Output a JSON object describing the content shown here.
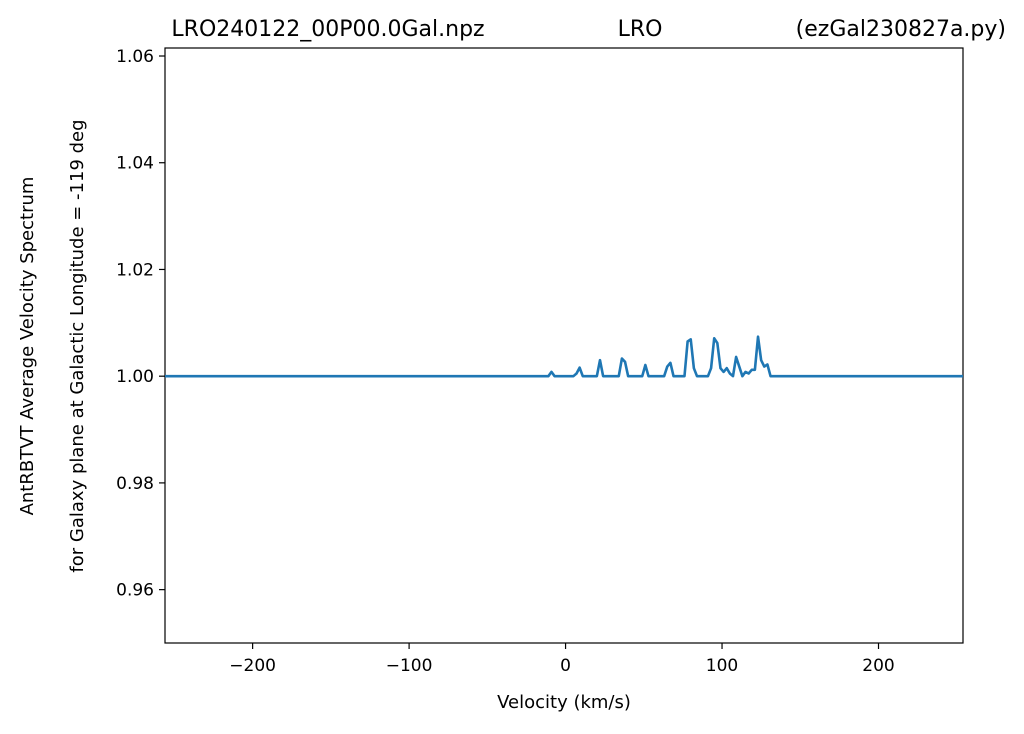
{
  "header": {
    "filename": "LRO240122_00P00.0Gal.npz",
    "station": "LRO",
    "script": "(ezGal230827a.py)"
  },
  "chart_data": {
    "type": "line",
    "title": "LRO240122_00P00.0Gal.npz LRO (ezGal230827a.py)",
    "xlabel": "Velocity (km/s)",
    "ylabel_lines": [
      "AntRBTVT Average Velocity Spectrum",
      "for Galaxy plane at Galactic Longitude = -119 deg"
    ],
    "xlim": [
      -256,
      254
    ],
    "ylim": [
      0.95,
      1.0615
    ],
    "x_ticks": [
      -200,
      -100,
      0,
      100,
      200
    ],
    "x_tick_labels": [
      "−200",
      "−100",
      "0",
      "100",
      "200"
    ],
    "y_ticks": [
      0.96,
      0.98,
      1.0,
      1.02,
      1.04,
      1.06
    ],
    "y_tick_labels": [
      "0.96",
      "0.98",
      "1.00",
      "1.02",
      "1.04",
      "1.06"
    ],
    "grid": false,
    "series": [
      {
        "color": "#1f77b4",
        "x": [
          -256,
          -11,
          -9,
          -7,
          5,
          7,
          9,
          11,
          20,
          22,
          24,
          34,
          36,
          38,
          40,
          49,
          51,
          53,
          63,
          65,
          67,
          69,
          76,
          78,
          80,
          82,
          84,
          91,
          93,
          95,
          97,
          99,
          101,
          103,
          105,
          107,
          109,
          111,
          113,
          115,
          117,
          119,
          121,
          123,
          125,
          127,
          129,
          131,
          254
        ],
        "y": [
          1.0,
          1.0,
          1.0008,
          1.0,
          1.0,
          1.0005,
          1.0016,
          1.0,
          1.0,
          1.003,
          1.0,
          1.0,
          1.0033,
          1.0027,
          1.0,
          1.0,
          1.0021,
          1.0,
          1.0,
          1.0018,
          1.0025,
          1.0,
          1.0,
          1.0065,
          1.0069,
          1.0015,
          1.0,
          1.0,
          1.0015,
          1.0071,
          1.0062,
          1.0015,
          1.0008,
          1.0015,
          1.0005,
          1.0,
          1.0036,
          1.0018,
          1.0,
          1.0008,
          1.0005,
          1.0012,
          1.0012,
          1.0074,
          1.003,
          1.0018,
          1.0022,
          1.0,
          1.0
        ]
      }
    ]
  }
}
